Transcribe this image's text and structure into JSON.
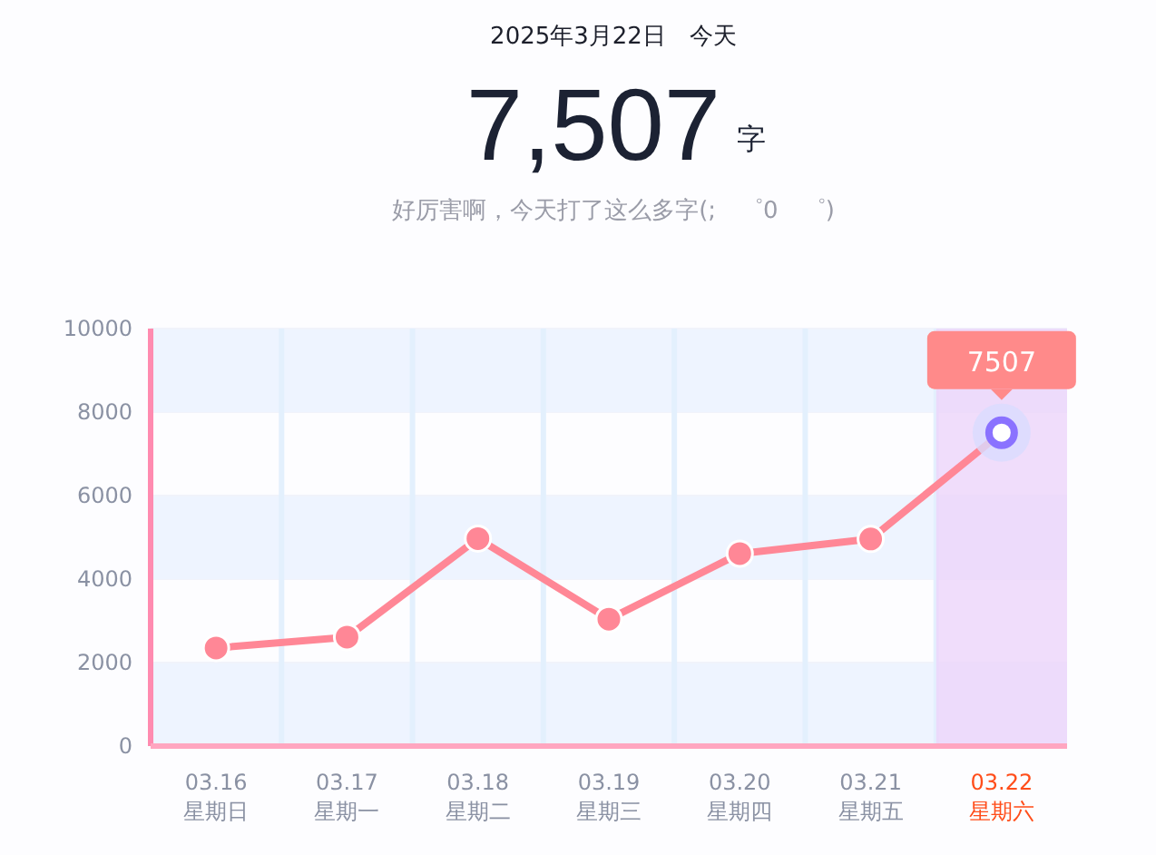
{
  "chart_data": {
    "type": "line",
    "title": "2025年3月22日　今天",
    "subtitle": "好厉害啊，今天打了这么多字(;　゜0　゜)",
    "annotations": [
      "7,507",
      "字"
    ],
    "categories": [
      "03.16\n星期日",
      "03.17\n星期一",
      "03.18\n星期二",
      "03.19\n星期三",
      "03.20\n星期四",
      "03.21\n星期五",
      "03.22\n星期六"
    ],
    "series": [
      {
        "color": "#ff8796",
        "values": [
          2350,
          2610,
          4970,
          3040,
          4610,
          4960,
          7507
        ],
        "value_labels": [
          null,
          null,
          null,
          null,
          null,
          null,
          "7507"
        ]
      }
    ],
    "bands": [
      {
        "axis": "x",
        "from": "03.22\n星期六",
        "to": "03.22\n星期六",
        "color": "#ecd4fa"
      }
    ],
    "ylim": [
      0,
      10000
    ],
    "yticks": [
      0,
      2000,
      4000,
      6000,
      8000,
      10000
    ],
    "grid": true,
    "marker": "circle",
    "line_style": "solid"
  }
}
